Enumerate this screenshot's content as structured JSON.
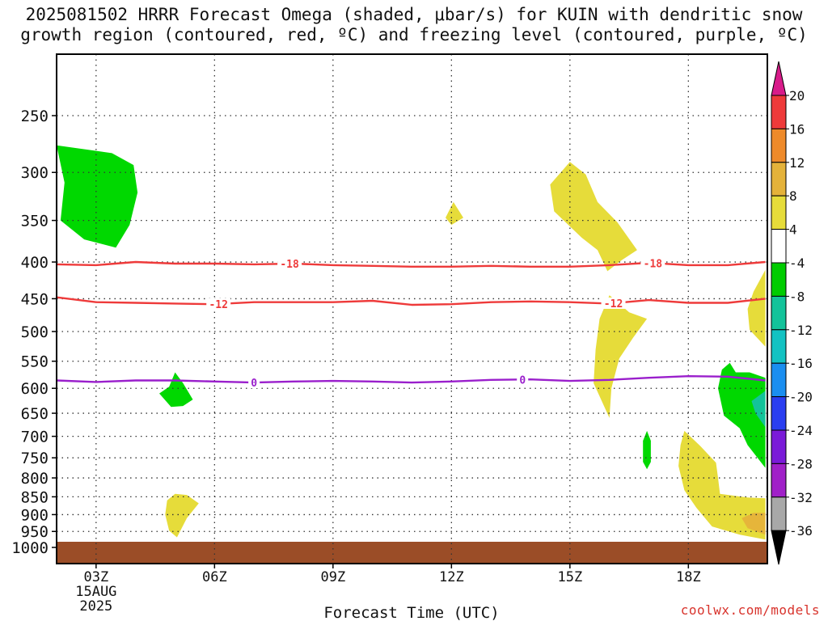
{
  "title": {
    "line1": "2025081502 HRRR Forecast Omega (shaded, μbar/s) for KUIN with dendritic snow",
    "line2": "growth region (contoured, red, ºC) and freezing level (contoured, purple, ºC)"
  },
  "credit": "coolwx.com/models",
  "chart_data": {
    "type": "heatmap",
    "title": "2025081502 HRRR Forecast Omega (shaded, μbar/s) for KUIN with dendritic snow growth region (contoured, red, ºC) and freezing level (contoured, purple, ºC)",
    "xlabel": "Forecast Time (UTC)",
    "ylabel": "",
    "xlim": [
      2,
      20
    ],
    "ylim": [
      1000,
      200
    ],
    "y_scale": "log",
    "grid": true,
    "x_ticks": [
      {
        "value": 3,
        "label": "03Z"
      },
      {
        "value": 6,
        "label": "06Z"
      },
      {
        "value": 9,
        "label": "09Z"
      },
      {
        "value": 12,
        "label": "12Z"
      },
      {
        "value": 15,
        "label": "15Z"
      },
      {
        "value": 18,
        "label": "18Z"
      }
    ],
    "x_date_label": [
      "15AUG",
      "2025"
    ],
    "y_ticks": [
      250,
      300,
      350,
      400,
      450,
      500,
      550,
      600,
      650,
      700,
      750,
      800,
      850,
      900,
      950,
      1000
    ],
    "terrain": {
      "color": "#9b4d27",
      "from_pressure": 982,
      "label": "below ground"
    },
    "colorbar": {
      "levels": [
        20,
        16,
        12,
        8,
        4,
        -4,
        -8,
        -12,
        -16,
        -20,
        -24,
        -28,
        -32,
        -36
      ],
      "colors": [
        "#d81b8a",
        "#ee3a3a",
        "#ee8a2a",
        "#e4b23a",
        "#e6dc3a",
        "#ffffff",
        "#00cc00",
        "#13c39a",
        "#13c2c2",
        "#1a8ef0",
        "#2a3ef0",
        "#7a1ad8",
        "#a020c8",
        "#a8a8a8",
        "#000000"
      ]
    },
    "shaded_regions": [
      {
        "class": "-8 to -4",
        "color": "#00d800",
        "points": [
          [
            2.0,
            275
          ],
          [
            3.4,
            282
          ],
          [
            3.95,
            293
          ],
          [
            4.05,
            320
          ],
          [
            3.85,
            355
          ],
          [
            3.5,
            382
          ],
          [
            2.7,
            372
          ],
          [
            2.1,
            350
          ],
          [
            2.2,
            310
          ]
        ]
      },
      {
        "class": "4 to 8",
        "color": "#e6dc3a",
        "points": [
          [
            12.0,
            355
          ],
          [
            12.3,
            347
          ],
          [
            12.05,
            330
          ],
          [
            11.85,
            347
          ]
        ]
      },
      {
        "class": "4 to 8",
        "color": "#e6dc3a",
        "points": [
          [
            15.0,
            290
          ],
          [
            15.4,
            302
          ],
          [
            15.7,
            330
          ],
          [
            16.2,
            352
          ],
          [
            16.7,
            385
          ],
          [
            16.3,
            398
          ],
          [
            15.95,
            412
          ],
          [
            15.7,
            385
          ],
          [
            15.3,
            370
          ],
          [
            14.6,
            340
          ],
          [
            14.5,
            312
          ]
        ]
      },
      {
        "class": "4 to 8",
        "color": "#e6dc3a",
        "points": [
          [
            16.0,
            445
          ],
          [
            16.5,
            470
          ],
          [
            16.95,
            480
          ],
          [
            16.6,
            510
          ],
          [
            16.25,
            545
          ],
          [
            16.05,
            600
          ],
          [
            16.0,
            660
          ],
          [
            15.6,
            590
          ],
          [
            15.65,
            530
          ],
          [
            15.75,
            480
          ]
        ]
      },
      {
        "class": "4 to 8",
        "color": "#e6dc3a",
        "points": [
          [
            19.95,
            410
          ],
          [
            19.95,
            525
          ],
          [
            19.55,
            497
          ],
          [
            19.5,
            465
          ],
          [
            19.65,
            440
          ]
        ]
      },
      {
        "class": "-8 to -4",
        "color": "#00d800",
        "points": [
          [
            5.0,
            570
          ],
          [
            5.2,
            590
          ],
          [
            5.45,
            622
          ],
          [
            5.2,
            635
          ],
          [
            4.9,
            637
          ],
          [
            4.6,
            610
          ],
          [
            4.85,
            597
          ]
        ]
      },
      {
        "class": "-8 to -4",
        "color": "#00d800",
        "points": [
          [
            16.95,
            688
          ],
          [
            17.05,
            710
          ],
          [
            17.05,
            760
          ],
          [
            16.95,
            778
          ],
          [
            16.85,
            760
          ],
          [
            16.85,
            710
          ]
        ]
      },
      {
        "class": "-8 to -4",
        "color": "#00d800",
        "points": [
          [
            19.05,
            553
          ],
          [
            19.2,
            570
          ],
          [
            19.55,
            570
          ],
          [
            19.95,
            580
          ],
          [
            19.95,
            775
          ],
          [
            19.5,
            720
          ],
          [
            19.3,
            682
          ],
          [
            18.9,
            655
          ],
          [
            18.75,
            600
          ],
          [
            18.85,
            565
          ]
        ]
      },
      {
        "class": "-12 to -8",
        "color": "#13c39a",
        "points": [
          [
            19.95,
            605
          ],
          [
            19.95,
            680
          ],
          [
            19.7,
            650
          ],
          [
            19.6,
            625
          ]
        ]
      },
      {
        "class": "4 to 8",
        "color": "#e6dc3a",
        "points": [
          [
            17.9,
            688
          ],
          [
            18.3,
            722
          ],
          [
            18.7,
            762
          ],
          [
            18.75,
            800
          ],
          [
            18.8,
            842
          ],
          [
            19.5,
            852
          ],
          [
            19.95,
            854
          ],
          [
            19.95,
            975
          ],
          [
            19.3,
            960
          ],
          [
            18.6,
            935
          ],
          [
            18.2,
            880
          ],
          [
            17.9,
            832
          ],
          [
            17.75,
            770
          ],
          [
            17.8,
            720
          ]
        ]
      },
      {
        "class": "8 to 12",
        "color": "#e6b53a",
        "points": [
          [
            19.95,
            895
          ],
          [
            19.95,
            960
          ],
          [
            19.5,
            940
          ],
          [
            19.35,
            910
          ],
          [
            19.65,
            895
          ]
        ]
      },
      {
        "class": "4 to 8",
        "color": "#e6dc3a",
        "points": [
          [
            5.0,
            842
          ],
          [
            5.3,
            845
          ],
          [
            5.6,
            868
          ],
          [
            5.3,
            910
          ],
          [
            5.05,
            968
          ],
          [
            4.85,
            948
          ],
          [
            4.75,
            900
          ],
          [
            4.8,
            860
          ]
        ]
      }
    ],
    "contours": [
      {
        "label": "-18",
        "color": "#ee3a3a",
        "label_x": [
          7.9,
          17.1
        ],
        "points": [
          [
            2,
            403
          ],
          [
            3,
            404
          ],
          [
            4,
            400
          ],
          [
            5,
            402
          ],
          [
            6,
            402
          ],
          [
            7,
            403
          ],
          [
            8,
            402
          ],
          [
            9,
            404
          ],
          [
            10,
            405
          ],
          [
            11,
            406
          ],
          [
            12,
            406
          ],
          [
            13,
            405
          ],
          [
            14,
            406
          ],
          [
            15,
            406
          ],
          [
            16,
            404
          ],
          [
            17,
            401
          ],
          [
            18,
            404
          ],
          [
            19,
            404
          ],
          [
            19.95,
            400
          ]
        ]
      },
      {
        "label": "-12",
        "color": "#ee3a3a",
        "label_x": [
          6.1,
          16.1
        ],
        "points": [
          [
            2,
            448
          ],
          [
            3,
            455
          ],
          [
            4,
            456
          ],
          [
            5,
            457
          ],
          [
            6,
            458
          ],
          [
            7,
            455
          ],
          [
            8,
            455
          ],
          [
            9,
            455
          ],
          [
            10,
            453
          ],
          [
            11,
            459
          ],
          [
            12,
            458
          ],
          [
            13,
            455
          ],
          [
            14,
            454
          ],
          [
            15,
            455
          ],
          [
            16,
            457
          ],
          [
            17,
            452
          ],
          [
            18,
            456
          ],
          [
            19,
            456
          ],
          [
            19.95,
            450
          ]
        ]
      },
      {
        "label": "0",
        "color": "#9a1fcc",
        "label_x": [
          7.0,
          13.8
        ],
        "points": [
          [
            2,
            585
          ],
          [
            3,
            588
          ],
          [
            4,
            585
          ],
          [
            5,
            585
          ],
          [
            6,
            587
          ],
          [
            7,
            589
          ],
          [
            8,
            587
          ],
          [
            9,
            586
          ],
          [
            10,
            587
          ],
          [
            11,
            589
          ],
          [
            12,
            587
          ],
          [
            13,
            584
          ],
          [
            14,
            583
          ],
          [
            15,
            586
          ],
          [
            16,
            584
          ],
          [
            17,
            580
          ],
          [
            18,
            577
          ],
          [
            19,
            578
          ],
          [
            19.95,
            585
          ]
        ]
      }
    ]
  }
}
